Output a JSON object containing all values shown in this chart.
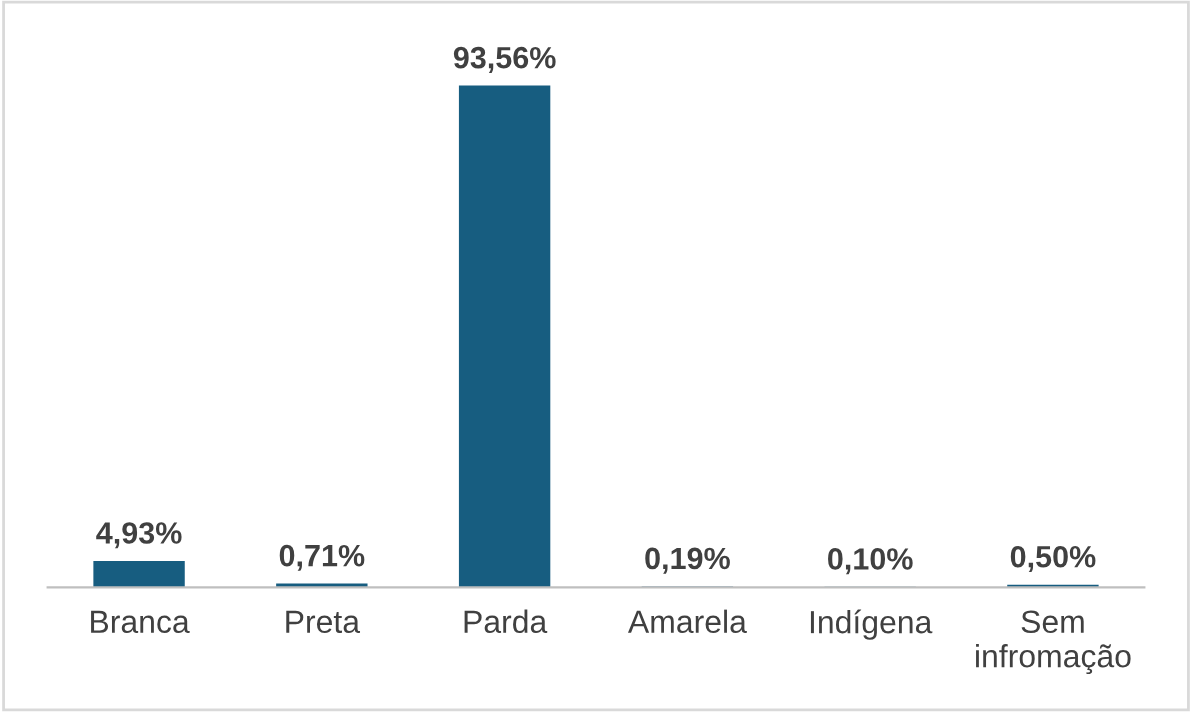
{
  "chart_data": {
    "type": "bar",
    "categories": [
      "Branca",
      "Preta",
      "Parda",
      "Amarela",
      "Indígena",
      "Sem\ninfromação"
    ],
    "values": [
      4.93,
      0.71,
      93.56,
      0.19,
      0.1,
      0.5
    ],
    "value_labels": [
      "4,93%",
      "0,71%",
      "93,56%",
      "0,19%",
      "0,10%",
      "0,50%"
    ],
    "color": "#175d80",
    "grid": false,
    "legend": false
  }
}
